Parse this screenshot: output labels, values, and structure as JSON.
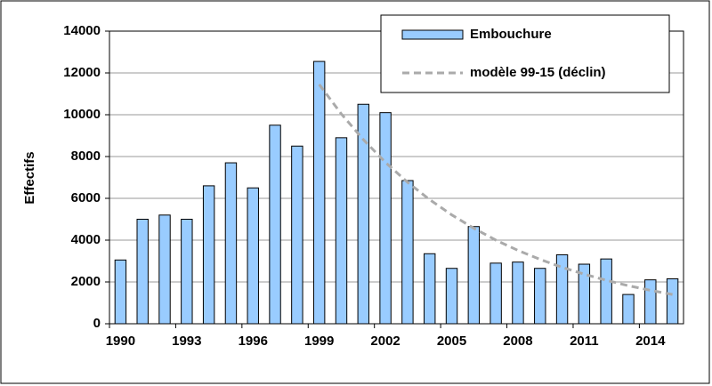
{
  "chart_data": {
    "type": "bar",
    "y_label": "Effectifs",
    "categories": [
      "1990",
      null,
      null,
      "1993",
      null,
      null,
      "1996",
      null,
      null,
      "1999",
      null,
      null,
      "2002",
      null,
      null,
      "2005",
      null,
      null,
      "2008",
      null,
      null,
      "2011",
      null,
      null,
      "2014",
      null
    ],
    "series": [
      {
        "name": "Embouchure",
        "type": "bar",
        "color": "#99ccff",
        "values": [
          3050,
          5000,
          5200,
          5000,
          6600,
          7700,
          6500,
          9500,
          8500,
          12550,
          8900,
          10500,
          10100,
          6850,
          3350,
          2650,
          4650,
          2900,
          2950,
          2650,
          3300,
          2850,
          3100,
          1400,
          2100,
          2150
        ]
      },
      {
        "name": "modèle 99-15 (déclin)",
        "type": "line",
        "dashed": true,
        "color": "#aaaaaa",
        "values": [
          null,
          null,
          null,
          null,
          null,
          null,
          null,
          null,
          null,
          11450,
          10040,
          8810,
          7720,
          6770,
          5940,
          5210,
          4570,
          4000,
          3510,
          3080,
          2700,
          2370,
          2080,
          1820,
          1600,
          1400
        ]
      }
    ],
    "ylim": [
      0,
      14000
    ],
    "yticks": [
      0,
      2000,
      4000,
      6000,
      8000,
      10000,
      12000,
      14000
    ],
    "grid": true,
    "legend": "top-right"
  }
}
